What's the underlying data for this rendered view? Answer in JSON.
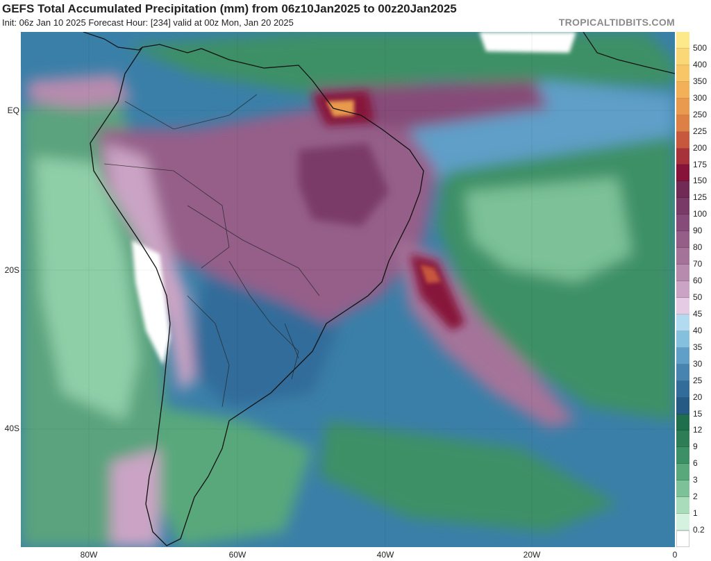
{
  "title": "GEFS Total Accumulated Precipitation (mm) from 06z10Jan2025 to 00z20Jan2025",
  "subtitle": "Init: 06z Jan 10 2025   Forecast Hour: [234]   valid at 00z Mon, Jan 20 2025",
  "source": "TROPICALTIDBITS.COM",
  "lat_labels": [
    "EQ",
    "20S",
    "40S"
  ],
  "lon_labels": [
    "80W",
    "60W",
    "40W",
    "20W",
    "0"
  ],
  "colorbar": [
    {
      "label": "500",
      "color": "#fde98a"
    },
    {
      "label": "400",
      "color": "#fbd877"
    },
    {
      "label": "350",
      "color": "#f8c667"
    },
    {
      "label": "300",
      "color": "#f3b058"
    },
    {
      "label": "250",
      "color": "#e99a4e"
    },
    {
      "label": "225",
      "color": "#dc8045"
    },
    {
      "label": "200",
      "color": "#c7573d"
    },
    {
      "label": "175",
      "color": "#a83239"
    },
    {
      "label": "150",
      "color": "#87133a"
    },
    {
      "label": "125",
      "color": "#702a55"
    },
    {
      "label": "100",
      "color": "#7a3a68"
    },
    {
      "label": "90",
      "color": "#864b78"
    },
    {
      "label": "80",
      "color": "#955e89"
    },
    {
      "label": "70",
      "color": "#a5739a"
    },
    {
      "label": "60",
      "color": "#b78bae"
    },
    {
      "label": "50",
      "color": "#cba4c5"
    },
    {
      "label": "45",
      "color": "#e5cbe3"
    },
    {
      "label": "40",
      "color": "#b3dbef"
    },
    {
      "label": "35",
      "color": "#86c0df"
    },
    {
      "label": "30",
      "color": "#5f9fc8"
    },
    {
      "label": "25",
      "color": "#4784b0"
    },
    {
      "label": "20",
      "color": "#326c9a"
    },
    {
      "label": "15",
      "color": "#255a85"
    },
    {
      "label": "12",
      "color": "#1f6e4c"
    },
    {
      "label": "9",
      "color": "#2d7e57"
    },
    {
      "label": "6",
      "color": "#3d9066"
    },
    {
      "label": "3",
      "color": "#58a87c"
    },
    {
      "label": "2",
      "color": "#7cc198"
    },
    {
      "label": "1",
      "color": "#a8dcbb"
    },
    {
      "label": "0.2",
      "color": "#d5f1df"
    },
    {
      "label": "",
      "color": "#ffffff"
    }
  ]
}
